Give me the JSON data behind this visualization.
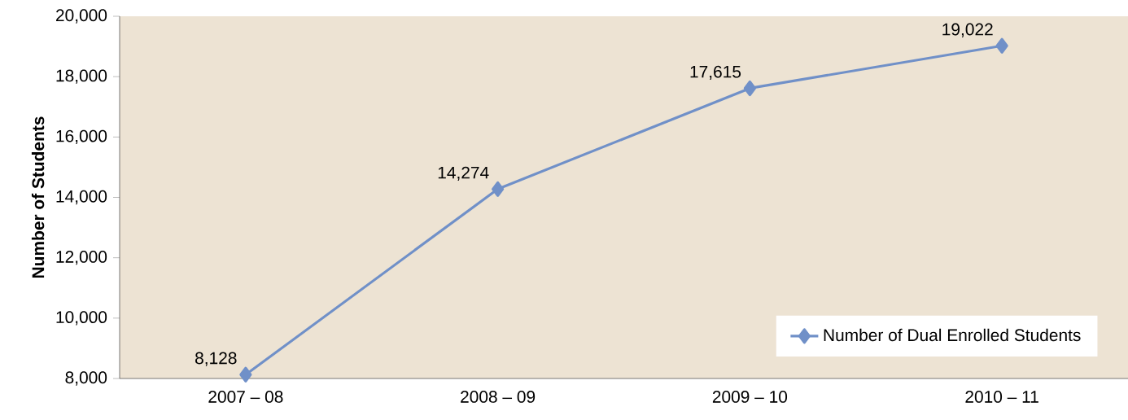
{
  "chart_data": {
    "type": "line",
    "ylabel": "Number of Students",
    "categories": [
      "2007 – 08",
      "2008 – 09",
      "2009 – 10",
      "2010 – 11"
    ],
    "series": [
      {
        "name": "Number of Dual Enrolled Students",
        "color": "#7090c8",
        "values": [
          8128,
          14274,
          17615,
          19022
        ],
        "value_labels": [
          "8,128",
          "14,274",
          "17,615",
          "19,022"
        ]
      }
    ],
    "ylim": [
      8000,
      20000
    ],
    "yticks": [
      {
        "value": 8000,
        "label": "8,000"
      },
      {
        "value": 10000,
        "label": "10,000"
      },
      {
        "value": 12000,
        "label": "12,000"
      },
      {
        "value": 14000,
        "label": "14,000"
      },
      {
        "value": 16000,
        "label": "16,000"
      },
      {
        "value": 18000,
        "label": "18,000"
      },
      {
        "value": 20000,
        "label": "20,000"
      }
    ],
    "grid": false,
    "legend": "bottom right",
    "marker": "diamond",
    "line_style": "solid"
  }
}
